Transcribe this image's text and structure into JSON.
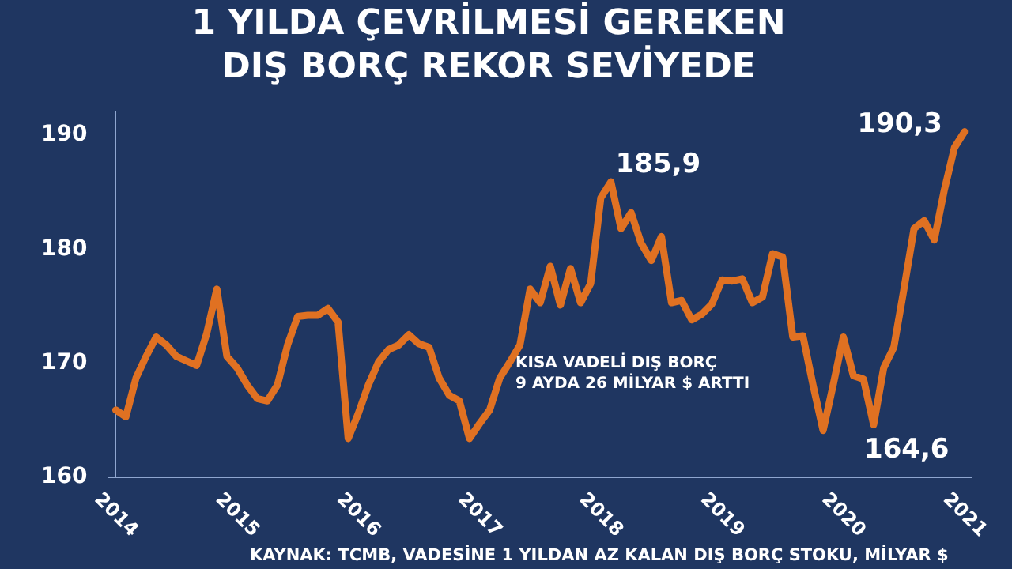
{
  "chart_data": {
    "type": "line",
    "title": "1 YILDA ÇEVRİLMESİ GEREKEN\nDIŞ BORÇ REKOR SEVİYEDE",
    "categories": [
      "2014",
      null,
      null,
      null,
      null,
      null,
      null,
      null,
      null,
      null,
      null,
      null,
      "2015",
      null,
      null,
      null,
      null,
      null,
      null,
      null,
      null,
      null,
      null,
      null,
      "2016",
      null,
      null,
      null,
      null,
      null,
      null,
      null,
      null,
      null,
      null,
      null,
      "2017",
      null,
      null,
      null,
      null,
      null,
      null,
      null,
      null,
      null,
      null,
      null,
      "2018",
      null,
      null,
      null,
      null,
      null,
      null,
      null,
      null,
      null,
      null,
      null,
      "2019",
      null,
      null,
      null,
      null,
      null,
      null,
      null,
      null,
      null,
      null,
      null,
      "2020",
      null,
      null,
      null,
      null,
      null,
      null,
      null,
      null,
      null,
      null,
      null,
      "2021"
    ],
    "series": [
      {
        "color": "#e07122",
        "values": [
          165.9,
          165.3,
          168.7,
          170.6,
          172.3,
          171.6,
          170.6,
          170.2,
          169.8,
          172.6,
          176.5,
          170.6,
          169.6,
          168.1,
          166.9,
          166.7,
          168.1,
          171.6,
          174.1,
          174.2,
          174.2,
          174.8,
          173.6,
          163.4,
          165.6,
          168.1,
          170.1,
          171.2,
          171.6,
          172.5,
          171.7,
          171.4,
          168.7,
          167.2,
          166.7,
          163.4,
          164.7,
          165.9,
          168.7,
          170.1,
          171.6,
          176.5,
          175.3,
          178.5,
          175.1,
          178.3,
          175.3,
          177.0,
          184.5,
          185.9,
          181.8,
          183.2,
          180.5,
          179.0,
          181.1,
          175.3,
          175.5,
          173.8,
          174.3,
          175.2,
          177.3,
          177.2,
          177.4,
          175.3,
          175.8,
          179.6,
          179.3,
          172.3,
          172.4,
          168.1,
          164.1,
          168.1,
          172.3,
          168.9,
          168.6,
          164.6,
          169.6,
          171.4,
          176.5,
          181.8,
          182.5,
          180.8,
          185.2,
          188.9,
          190.3
        ],
        "value_labels": [
          null,
          null,
          null,
          null,
          null,
          null,
          null,
          null,
          null,
          null,
          null,
          null,
          null,
          null,
          null,
          null,
          null,
          null,
          null,
          null,
          null,
          null,
          null,
          null,
          null,
          null,
          null,
          null,
          null,
          null,
          null,
          null,
          null,
          null,
          null,
          null,
          null,
          null,
          null,
          null,
          null,
          null,
          null,
          null,
          null,
          null,
          null,
          null,
          null,
          "185,9",
          null,
          null,
          null,
          null,
          null,
          null,
          null,
          null,
          null,
          null,
          null,
          null,
          null,
          null,
          null,
          null,
          null,
          null,
          null,
          null,
          null,
          null,
          null,
          null,
          null,
          "164,6",
          null,
          null,
          null,
          null,
          null,
          null,
          null,
          null,
          "190,3"
        ]
      }
    ],
    "ylim": [
      160,
      192
    ],
    "yticks": [
      160,
      170,
      180,
      190
    ],
    "grid": false,
    "legend": false,
    "marker": "none",
    "line_style": "solid",
    "annotations": [
      "KISA VADELİ DIŞ BORÇ\n9 AYDA 26 MİLYAR $ ARTTI",
      "KAYNAK: TCMB, VADESİNE 1 YILDAN AZ KALAN DIŞ BORÇ STOKU, MİLYAR $"
    ]
  }
}
